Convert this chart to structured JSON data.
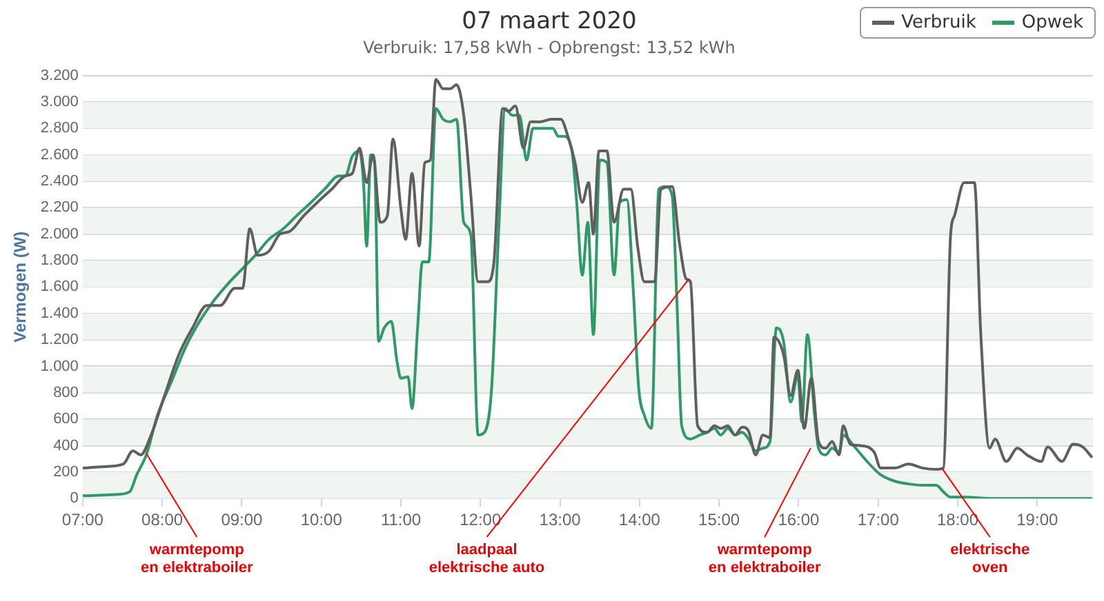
{
  "chart_data": {
    "type": "line",
    "title": "07 maart 2020",
    "subtitle": "Verbruik: 17,58 kWh - Opbrengst: 13,52 kWh",
    "ylabel": "Vermogen (W)",
    "legend": "top right",
    "grid": "y",
    "marker": "none",
    "xlim": [
      7,
      19.7
    ],
    "xticks": [
      {
        "value": 7,
        "label": "07:00"
      },
      {
        "value": 8,
        "label": "08:00"
      },
      {
        "value": 9,
        "label": "09:00"
      },
      {
        "value": 10,
        "label": "10:00"
      },
      {
        "value": 11,
        "label": "11:00"
      },
      {
        "value": 12,
        "label": "12:00"
      },
      {
        "value": 13,
        "label": "13:00"
      },
      {
        "value": 14,
        "label": "14:00"
      },
      {
        "value": 15,
        "label": "15:00"
      },
      {
        "value": 16,
        "label": "16:00"
      },
      {
        "value": 17,
        "label": "17:00"
      },
      {
        "value": 18,
        "label": "18:00"
      },
      {
        "value": 19,
        "label": "19:00"
      }
    ],
    "ylim": [
      0,
      3200
    ],
    "yticks": [
      0,
      200,
      400,
      600,
      800,
      {
        "value": 1000,
        "label": "1.000"
      },
      {
        "value": 1200,
        "label": "1.200"
      },
      {
        "value": 1400,
        "label": "1.400"
      },
      {
        "value": 1600,
        "label": "1.600"
      },
      {
        "value": 1800,
        "label": "1.800"
      },
      {
        "value": 2000,
        "label": "2.000"
      },
      {
        "value": 2200,
        "label": "2.200"
      },
      {
        "value": 2400,
        "label": "2.400"
      },
      {
        "value": 2600,
        "label": "2.600"
      },
      {
        "value": 2800,
        "label": "2.800"
      },
      {
        "value": 3000,
        "label": "3.000"
      },
      {
        "value": 3200,
        "label": "3.200"
      }
    ],
    "bands": [
      {
        "axis": "y",
        "from": 0,
        "to": 200,
        "color": "#f0f5f2"
      },
      {
        "axis": "y",
        "from": 400,
        "to": 600,
        "color": "#f0f5f2"
      },
      {
        "axis": "y",
        "from": 800,
        "to": 1000,
        "color": "#f0f5f2"
      },
      {
        "axis": "y",
        "from": 1200,
        "to": 1400,
        "color": "#f0f5f2"
      },
      {
        "axis": "y",
        "from": 1600,
        "to": 1800,
        "color": "#f0f5f2"
      },
      {
        "axis": "y",
        "from": 2000,
        "to": 2200,
        "color": "#f0f5f2"
      },
      {
        "axis": "y",
        "from": 2400,
        "to": 2600,
        "color": "#f0f5f2"
      },
      {
        "axis": "y",
        "from": 2800,
        "to": 3000,
        "color": "#f0f5f2"
      }
    ],
    "annotations": [
      {
        "text": "warmtepomp\nen elektraboiler",
        "x": 7.8,
        "y": 340
      },
      {
        "text": "laadpaal\nelektrische auto",
        "x": 14.62,
        "y": 1660
      },
      {
        "text": "warmtepomp\nen elektraboiler",
        "x": 16.15,
        "y": 380
      },
      {
        "text": "elektrische\noven",
        "x": 17.8,
        "y": 230
      }
    ],
    "series": [
      {
        "name": "Verbruik",
        "color": "#5f5f5f",
        "x": [
          7.0,
          7.24,
          7.51,
          7.63,
          7.73,
          7.86,
          8.03,
          8.21,
          8.38,
          8.56,
          8.73,
          8.91,
          9.01,
          9.1,
          9.2,
          9.34,
          9.48,
          9.6,
          9.78,
          9.95,
          10.13,
          10.3,
          10.39,
          10.48,
          10.57,
          10.65,
          10.74,
          10.83,
          10.9,
          11.0,
          11.06,
          11.14,
          11.23,
          11.3,
          11.37,
          11.44,
          11.53,
          11.62,
          11.7,
          11.79,
          11.88,
          11.97,
          12.09,
          12.17,
          12.28,
          12.35,
          12.44,
          12.54,
          12.63,
          12.75,
          12.89,
          13.01,
          13.1,
          13.19,
          13.28,
          13.36,
          13.42,
          13.49,
          13.59,
          13.68,
          13.8,
          13.89,
          13.98,
          14.06,
          14.19,
          14.27,
          14.41,
          14.5,
          14.59,
          14.64,
          14.73,
          14.85,
          14.94,
          15.02,
          15.11,
          15.2,
          15.29,
          15.37,
          15.46,
          15.55,
          15.64,
          15.69,
          15.81,
          15.9,
          15.99,
          16.07,
          16.16,
          16.25,
          16.34,
          16.42,
          16.51,
          16.56,
          16.65,
          16.77,
          16.95,
          17.03,
          17.21,
          17.38,
          17.56,
          17.73,
          17.82,
          17.91,
          17.96,
          18.08,
          18.21,
          18.29,
          18.4,
          18.47,
          18.61,
          18.75,
          18.87,
          19.05,
          19.13,
          19.31,
          19.45,
          19.57,
          19.69
        ],
        "values": [
          230,
          240,
          260,
          360,
          330,
          480,
          780,
          1090,
          1290,
          1460,
          1460,
          1590,
          1590,
          2040,
          1840,
          1870,
          2000,
          2020,
          2140,
          2240,
          2340,
          2440,
          2460,
          2650,
          2390,
          2600,
          2090,
          2140,
          2720,
          2190,
          1960,
          2460,
          1910,
          2540,
          2560,
          3170,
          3100,
          3100,
          3130,
          2900,
          2290,
          1640,
          1640,
          1790,
          2950,
          2930,
          2970,
          2650,
          2850,
          2850,
          2870,
          2870,
          2740,
          2540,
          2240,
          2390,
          2000,
          2630,
          2630,
          2090,
          2340,
          2340,
          1890,
          1640,
          1640,
          2340,
          2360,
          1940,
          1660,
          1640,
          550,
          500,
          550,
          530,
          550,
          480,
          540,
          510,
          330,
          480,
          460,
          1220,
          1090,
          780,
          970,
          530,
          910,
          430,
          380,
          430,
          330,
          550,
          410,
          400,
          350,
          230,
          230,
          260,
          230,
          220,
          230,
          1990,
          2140,
          2390,
          2390,
          1240,
          380,
          450,
          280,
          380,
          330,
          280,
          390,
          280,
          410,
          390,
          310
        ]
      },
      {
        "name": "Opwek",
        "color": "#2f9a67",
        "x": [
          7.0,
          7.42,
          7.59,
          7.68,
          7.8,
          7.94,
          8.12,
          8.29,
          8.47,
          8.64,
          8.82,
          9.01,
          9.17,
          9.34,
          9.52,
          9.69,
          9.87,
          10.04,
          10.22,
          10.3,
          10.39,
          10.48,
          10.53,
          10.57,
          10.62,
          10.67,
          10.72,
          10.79,
          10.88,
          10.95,
          11.0,
          11.09,
          11.14,
          11.21,
          11.27,
          11.35,
          11.44,
          11.53,
          11.62,
          11.7,
          11.79,
          11.88,
          11.97,
          12.05,
          12.14,
          12.23,
          12.31,
          12.4,
          12.49,
          12.58,
          12.66,
          12.79,
          12.91,
          12.98,
          13.05,
          13.15,
          13.21,
          13.28,
          13.35,
          13.42,
          13.5,
          13.59,
          13.68,
          13.75,
          13.84,
          13.92,
          13.99,
          14.06,
          14.15,
          14.24,
          14.33,
          14.41,
          14.47,
          14.53,
          14.64,
          14.76,
          14.85,
          14.94,
          15.02,
          15.11,
          15.2,
          15.29,
          15.37,
          15.46,
          15.55,
          15.64,
          15.72,
          15.81,
          15.9,
          15.99,
          16.04,
          16.11,
          16.2,
          16.25,
          16.34,
          16.42,
          16.51,
          16.56,
          16.69,
          16.86,
          17.03,
          17.21,
          17.38,
          17.56,
          17.73,
          17.82,
          17.91,
          18.08,
          18.43,
          19.69
        ],
        "values": [
          20,
          30,
          50,
          180,
          330,
          630,
          890,
          1140,
          1340,
          1490,
          1620,
          1740,
          1840,
          1960,
          2040,
          2140,
          2240,
          2340,
          2440,
          2440,
          2590,
          2630,
          2390,
          1910,
          2600,
          2540,
          1190,
          1290,
          1340,
          1040,
          910,
          920,
          680,
          1290,
          1790,
          1790,
          2950,
          2870,
          2850,
          2870,
          2090,
          1990,
          480,
          500,
          830,
          2040,
          2950,
          2900,
          2900,
          2560,
          2800,
          2800,
          2800,
          2740,
          2740,
          2630,
          2240,
          1690,
          2090,
          1240,
          2560,
          2540,
          1690,
          2240,
          2260,
          1590,
          830,
          630,
          530,
          2340,
          2360,
          2290,
          1490,
          550,
          450,
          480,
          500,
          530,
          480,
          530,
          480,
          500,
          450,
          360,
          380,
          430,
          1290,
          1190,
          730,
          930,
          580,
          1240,
          630,
          380,
          330,
          380,
          350,
          480,
          400,
          280,
          180,
          130,
          110,
          100,
          100,
          50,
          10,
          10,
          0,
          0
        ]
      }
    ]
  }
}
